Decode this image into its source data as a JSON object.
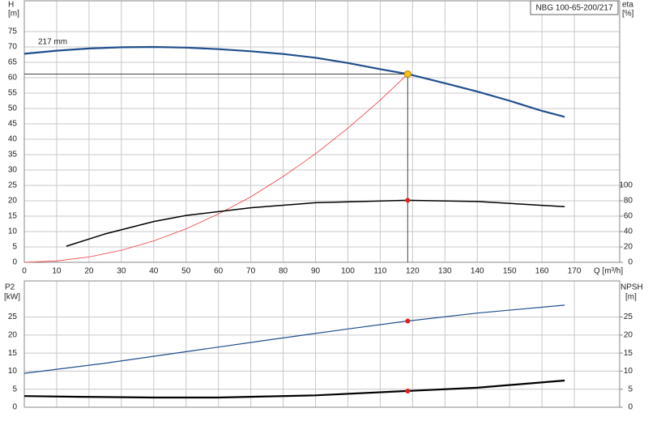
{
  "chart_data": [
    {
      "type": "line",
      "title": "NBG 100-65-200/217",
      "x_label": "Q [m³/h]",
      "y_label": "H",
      "y_unit": "[m]",
      "y2_label": "eta",
      "y2_unit": "[%]",
      "xlim": [
        0,
        184
      ],
      "xticks": [
        0,
        10,
        20,
        30,
        40,
        50,
        60,
        70,
        80,
        90,
        100,
        110,
        120,
        130,
        140,
        150,
        160,
        170
      ],
      "ylim": [
        0,
        85
      ],
      "yticks": [
        0,
        5,
        10,
        15,
        20,
        25,
        30,
        35,
        40,
        45,
        50,
        55,
        60,
        65,
        70,
        75
      ],
      "y2lim": [
        0,
        340
      ],
      "y2ticks": [
        0,
        20,
        40,
        60,
        80,
        100
      ],
      "grid": true,
      "series": [
        {
          "name": "217 mm",
          "color": "#1f4e8c",
          "width": 2.2,
          "x": [
            0,
            10,
            20,
            30,
            40,
            50,
            60,
            70,
            80,
            90,
            100,
            110,
            118.5,
            130,
            140,
            150,
            160,
            167
          ],
          "values": [
            67.8,
            68.8,
            69.5,
            69.9,
            70.0,
            69.8,
            69.3,
            68.6,
            67.7,
            66.5,
            64.8,
            62.8,
            61.2,
            58.2,
            55.5,
            52.5,
            49.2,
            47.3
          ],
          "marker": {
            "index": 12,
            "color": "#f7c21a"
          }
        },
        {
          "color": "#f03c3c",
          "width": 0.8,
          "x": [
            0,
            10,
            20,
            30,
            40,
            50,
            60,
            70,
            80,
            90,
            100,
            110,
            118.5
          ],
          "values": [
            0,
            0.44,
            1.74,
            3.92,
            6.97,
            10.9,
            15.7,
            21.3,
            27.9,
            35.3,
            43.6,
            52.7,
            61.2
          ]
        },
        {
          "color": "#000000",
          "width": 1.5,
          "axis": "y2",
          "x": [
            13,
            25,
            40,
            50,
            70,
            90,
            118.5,
            140,
            167
          ],
          "values": [
            21,
            37,
            53,
            61,
            71,
            77.5,
            80.6,
            79,
            72.3
          ],
          "marker": {
            "index": 6,
            "color": "#e02020"
          }
        }
      ]
    },
    {
      "type": "line",
      "y_label": "P2",
      "y_unit": "[kW]",
      "y2_label": "NPSH",
      "y2_unit": "[m]",
      "xlim": [
        0,
        184
      ],
      "ylim": [
        0,
        35
      ],
      "yticks": [
        0,
        5,
        10,
        15,
        20,
        25
      ],
      "y2lim": [
        0,
        35
      ],
      "y2ticks": [
        0,
        5,
        10,
        15,
        20,
        25
      ],
      "grid": true,
      "series": [
        {
          "color": "#1f4e8c",
          "width": 1.2,
          "x": [
            0,
            25,
            50,
            75,
            100,
            118.5,
            140,
            167
          ],
          "values": [
            9.4,
            12.2,
            15.4,
            18.6,
            21.7,
            23.9,
            26.1,
            28.3
          ],
          "marker": {
            "index": 5,
            "color": "#e02020"
          }
        },
        {
          "color": "#000000",
          "width": 2.2,
          "axis": "y2",
          "x": [
            0,
            17,
            40,
            60,
            90,
            118.5,
            140,
            167
          ],
          "values": [
            3.1,
            2.9,
            2.7,
            2.7,
            3.3,
            4.5,
            5.4,
            7.4
          ],
          "marker": {
            "index": 5,
            "color": "#e02020"
          }
        }
      ]
    }
  ]
}
